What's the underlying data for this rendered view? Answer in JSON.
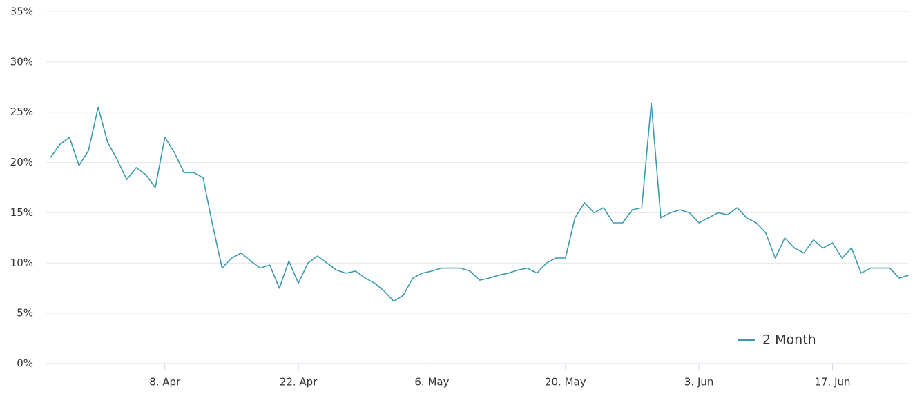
{
  "chart_data": {
    "type": "line",
    "categories": [
      null,
      null,
      null,
      null,
      null,
      null,
      null,
      null,
      null,
      null,
      null,
      null,
      "8. Apr",
      null,
      null,
      null,
      null,
      null,
      null,
      null,
      null,
      null,
      null,
      null,
      null,
      null,
      "22. Apr",
      null,
      null,
      null,
      null,
      null,
      null,
      null,
      null,
      null,
      null,
      null,
      null,
      null,
      "6. May",
      null,
      null,
      null,
      null,
      null,
      null,
      null,
      null,
      null,
      null,
      null,
      null,
      null,
      "20. May",
      null,
      null,
      null,
      null,
      null,
      null,
      null,
      null,
      null,
      null,
      null,
      null,
      null,
      "3. Jun",
      null,
      null,
      null,
      null,
      null,
      null,
      null,
      null,
      null,
      null,
      null,
      null,
      null,
      "17. Jun",
      null,
      null,
      null,
      null,
      null,
      null,
      null,
      null
    ],
    "series": [
      {
        "name": "2 Month",
        "color": "#3a9aad",
        "values": [
          20.5,
          21.8,
          22.5,
          19.7,
          21.2,
          25.5,
          22,
          20.3,
          18.3,
          19.5,
          18.8,
          17.5,
          22.5,
          21,
          19,
          19,
          18.5,
          13.8,
          9.5,
          10.5,
          11,
          10.2,
          9.5,
          9.8,
          7.5,
          10.2,
          8,
          10,
          10.7,
          10,
          9.3,
          9,
          9.2,
          8.5,
          8,
          7.2,
          6.2,
          6.8,
          8.5,
          9,
          9.2,
          9.5,
          9.5,
          9.5,
          9.2,
          8.3,
          8.5,
          8.8,
          9,
          9.3,
          9.5,
          9,
          10,
          10.5,
          10.5,
          14.5,
          16,
          15,
          15.5,
          14,
          14,
          15.3,
          15.5,
          25.9,
          14.5,
          15,
          15.3,
          15,
          14,
          14.5,
          15,
          14.8,
          15.5,
          14.5,
          14,
          13,
          10.5,
          12.5,
          11.5,
          11,
          12.3,
          11.5,
          12,
          10.5,
          11.5,
          9,
          9.5,
          9.5,
          9.5,
          8.5,
          8.8
        ]
      }
    ],
    "ylim": [
      0,
      35
    ],
    "yticks": [
      {
        "value": 0,
        "label": "0%"
      },
      {
        "value": 5,
        "label": "5%"
      },
      {
        "value": 10,
        "label": "10%"
      },
      {
        "value": 15,
        "label": "15%"
      },
      {
        "value": 20,
        "label": "20%"
      },
      {
        "value": 25,
        "label": "25%"
      },
      {
        "value": 30,
        "label": "30%"
      },
      {
        "value": 35,
        "label": "35%"
      }
    ],
    "grid": true,
    "legend": "lower right"
  }
}
